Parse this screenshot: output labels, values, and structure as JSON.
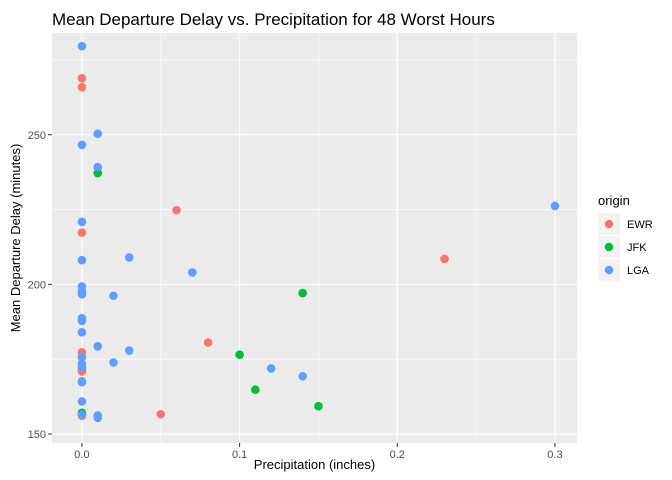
{
  "chart_data": {
    "type": "scatter",
    "title": "Mean Departure Delay vs. Precipitation for 48 Worst Hours",
    "xlabel": "Precipitation (inches)",
    "ylabel": "Mean Departure Delay (minutes)",
    "xlim": [
      -0.019,
      0.314
    ],
    "ylim": [
      147,
      284
    ],
    "xticks": [
      0.0,
      0.1,
      0.2,
      0.3
    ],
    "xtick_labels": [
      "0.0",
      "0.1",
      "0.2",
      "0.3"
    ],
    "yticks": [
      150,
      200,
      250
    ],
    "ytick_labels": [
      "150",
      "200",
      "250"
    ],
    "grid": true,
    "legend": {
      "title": "origin",
      "position": "right",
      "entries": [
        {
          "label": "EWR",
          "color": "#F8766D"
        },
        {
          "label": "JFK",
          "color": "#00BA38"
        },
        {
          "label": "LGA",
          "color": "#619CFF"
        }
      ]
    },
    "series": [
      {
        "name": "EWR",
        "color": "#F8766D",
        "points": [
          [
            0.0,
            268.9
          ],
          [
            0.0,
            265.9
          ],
          [
            0.0,
            217.3
          ],
          [
            0.0,
            177.3
          ],
          [
            0.0,
            171.7
          ],
          [
            0.0,
            170.9
          ],
          [
            0.0,
            156.1
          ],
          [
            0.05,
            156.6
          ],
          [
            0.06,
            224.8
          ],
          [
            0.08,
            180.6
          ],
          [
            0.23,
            208.5
          ]
        ]
      },
      {
        "name": "JFK",
        "color": "#00BA38",
        "points": [
          [
            0.0,
            157.1
          ],
          [
            0.01,
            237.2
          ],
          [
            0.1,
            176.5
          ],
          [
            0.11,
            164.8
          ],
          [
            0.14,
            197.1
          ],
          [
            0.15,
            159.3
          ]
        ]
      },
      {
        "name": "LGA",
        "color": "#619CFF",
        "points": [
          [
            0.0,
            279.6
          ],
          [
            0.0,
            246.6
          ],
          [
            0.0,
            220.9
          ],
          [
            0.0,
            208.1
          ],
          [
            0.0,
            199.3
          ],
          [
            0.0,
            197.6
          ],
          [
            0.0,
            196.7
          ],
          [
            0.0,
            188.7
          ],
          [
            0.0,
            187.8
          ],
          [
            0.0,
            184.0
          ],
          [
            0.0,
            175.7
          ],
          [
            0.0,
            173.5
          ],
          [
            0.0,
            172.4
          ],
          [
            0.0,
            167.6
          ],
          [
            0.0,
            167.3
          ],
          [
            0.0,
            160.9
          ],
          [
            0.0,
            156.5
          ],
          [
            0.01,
            250.3
          ],
          [
            0.01,
            239.2
          ],
          [
            0.01,
            179.3
          ],
          [
            0.01,
            156.2
          ],
          [
            0.01,
            155.4
          ],
          [
            0.02,
            196.2
          ],
          [
            0.02,
            173.9
          ],
          [
            0.03,
            209.0
          ],
          [
            0.03,
            177.9
          ],
          [
            0.07,
            204.0
          ],
          [
            0.12,
            171.9
          ],
          [
            0.14,
            169.3
          ],
          [
            0.3,
            226.2
          ]
        ]
      }
    ]
  }
}
